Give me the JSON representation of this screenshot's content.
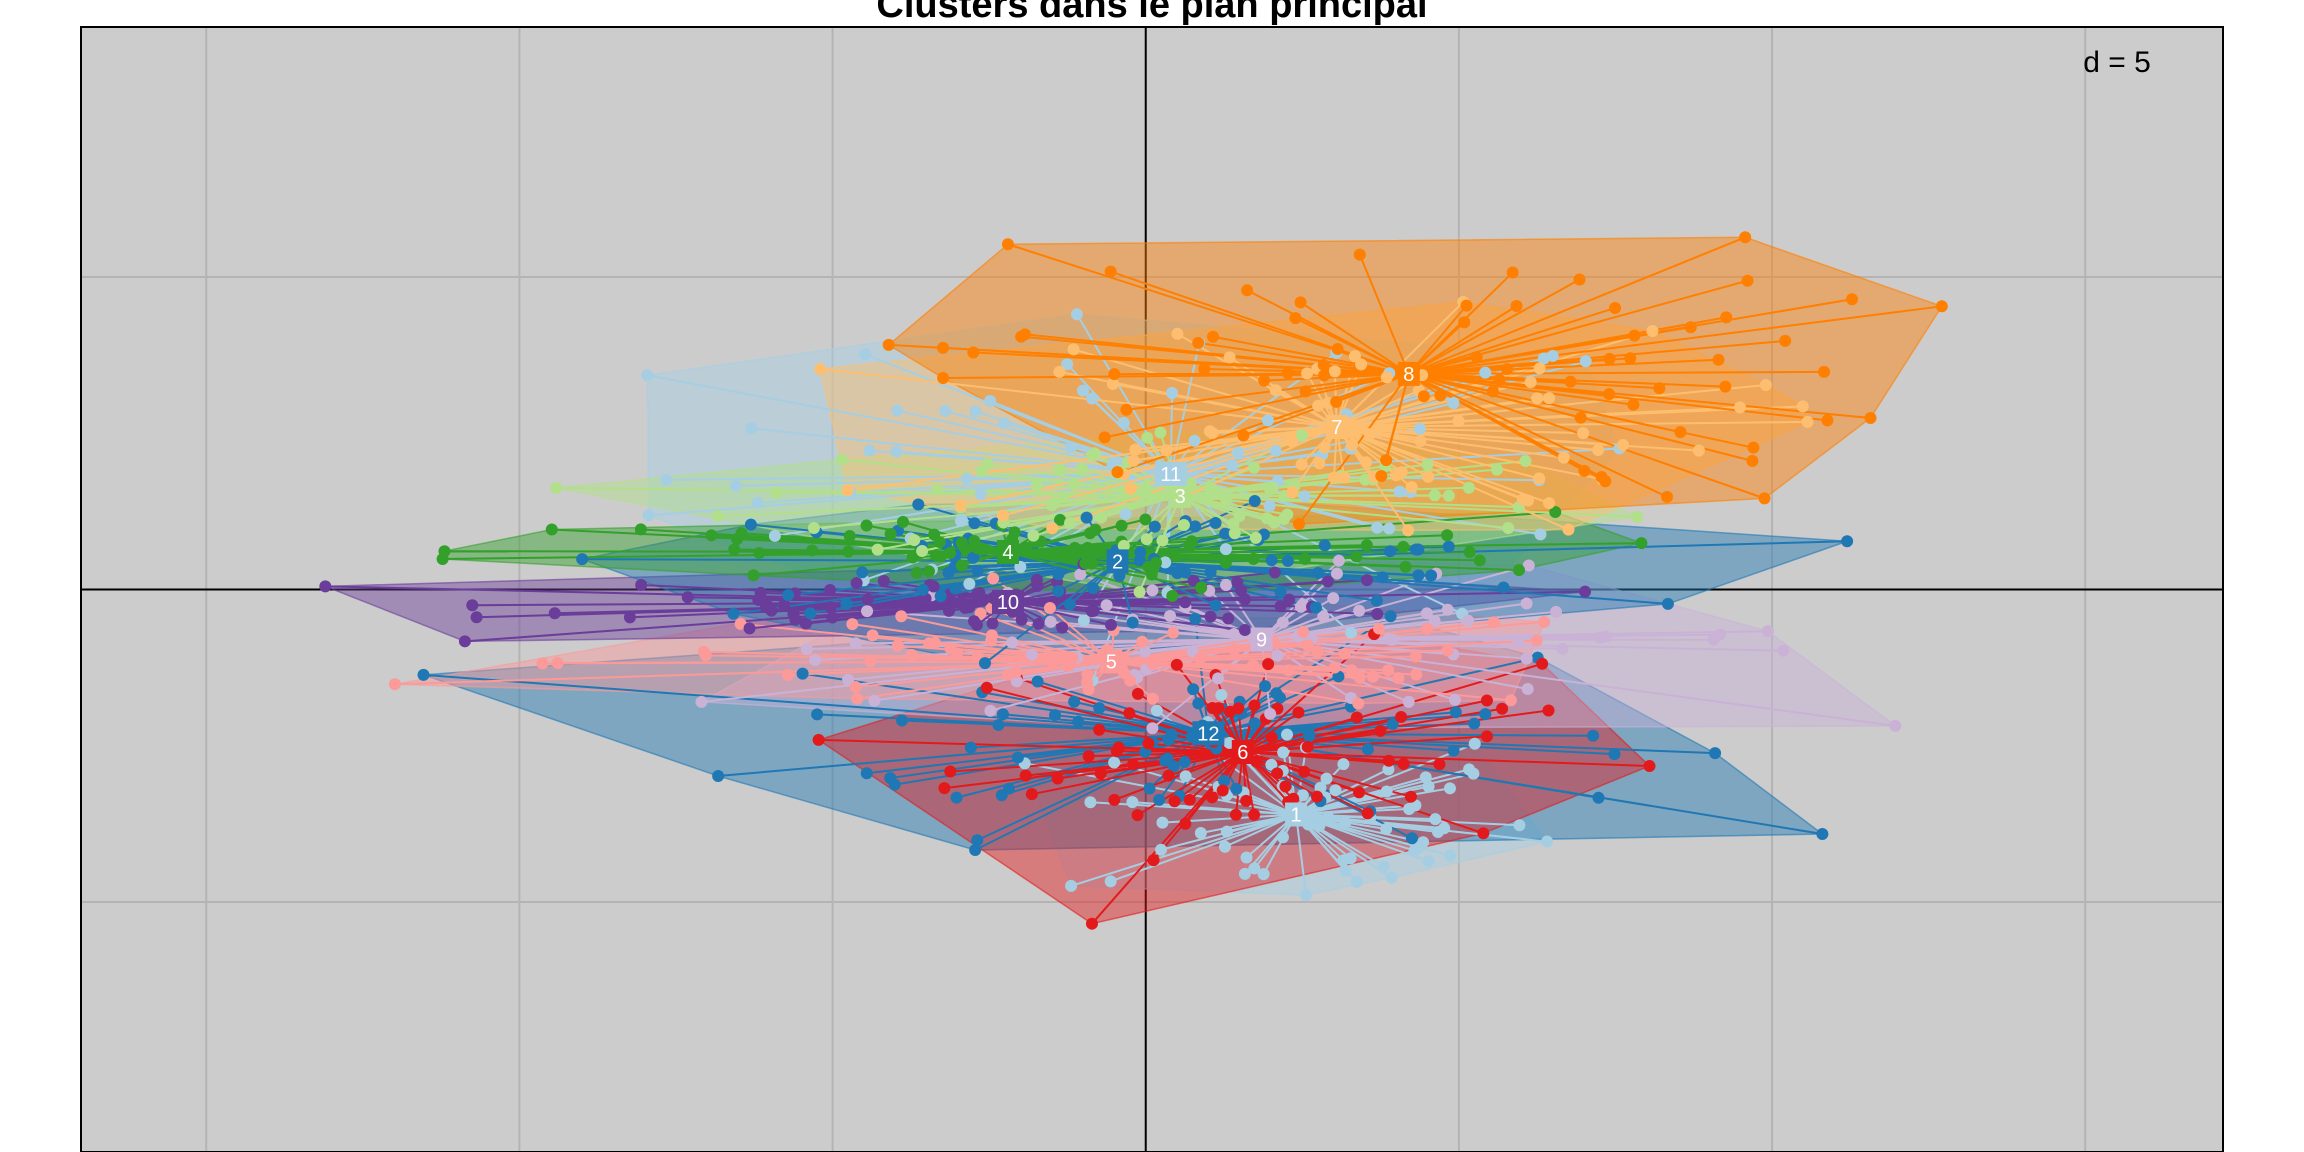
{
  "chart_data": {
    "type": "scatter",
    "title": "Clusters dans le plan principal",
    "grid_step_label": "d = 5",
    "xlim": [
      -17,
      17.2
    ],
    "ylim": [
      -9,
      9
    ],
    "grid": true,
    "grid_step": 5,
    "background": "#cccccc",
    "clusters": [
      {
        "name": "1",
        "color": "#a6cee3",
        "center": [
          2.4,
          -3.6
        ],
        "spread": [
          4.2,
          1.7
        ]
      },
      {
        "name": "2",
        "color": "#1f78b4",
        "center": [
          -0.45,
          0.45
        ],
        "spread": [
          8.2,
          0.9
        ]
      },
      {
        "name": "3",
        "color": "#b2df8a",
        "center": [
          0.55,
          1.5
        ],
        "spread": [
          7.6,
          1.2
        ]
      },
      {
        "name": "4",
        "color": "#33a02c",
        "center": [
          -2.2,
          0.6
        ],
        "spread": [
          9.6,
          0.7
        ]
      },
      {
        "name": "5",
        "color": "#fb9a99",
        "center": [
          -0.55,
          -1.15
        ],
        "spread": [
          9.6,
          0.9
        ]
      },
      {
        "name": "6",
        "color": "#e31a1c",
        "center": [
          1.55,
          -2.6
        ],
        "spread": [
          5.2,
          1.8
        ]
      },
      {
        "name": "7",
        "color": "#fdbf6f",
        "center": [
          3.05,
          2.6
        ],
        "spread": [
          7.0,
          1.9
        ]
      },
      {
        "name": "8",
        "color": "#ff7f00",
        "center": [
          4.2,
          3.45
        ],
        "spread": [
          8.5,
          2.4
        ]
      },
      {
        "name": "9",
        "color": "#cab2d6",
        "center": [
          1.85,
          -0.8
        ],
        "spread": [
          10.0,
          1.2
        ]
      },
      {
        "name": "10",
        "color": "#6a3d9a",
        "center": [
          -2.2,
          -0.2
        ],
        "spread": [
          8.5,
          0.55
        ]
      },
      {
        "name": "11",
        "color": "#a6cee3",
        "center": [
          0.4,
          1.85
        ],
        "spread": [
          9.0,
          2.8
        ]
      },
      {
        "name": "12",
        "color": "#1f78b4",
        "center": [
          1.0,
          -2.3
        ],
        "spread": [
          8.0,
          1.8
        ]
      }
    ]
  }
}
